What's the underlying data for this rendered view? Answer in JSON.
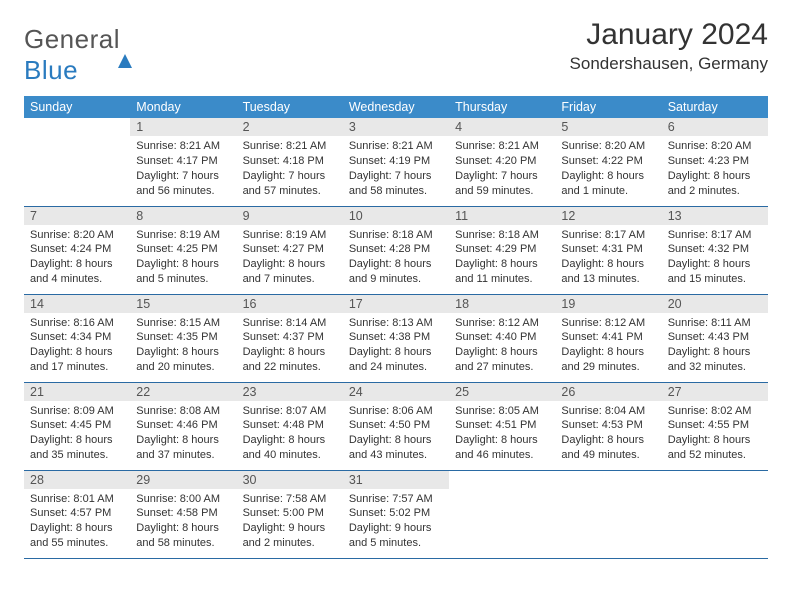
{
  "brand": {
    "left": "General",
    "right": "Blue"
  },
  "title": "January 2024",
  "location": "Sondershausen, Germany",
  "theme": {
    "header_bg": "#3b8bc9",
    "header_text": "#ffffff",
    "daynum_bg": "#e8e8e8",
    "border_color": "#2a6aa3",
    "body_text": "#333333",
    "title_fontsize": 30,
    "location_fontsize": 17,
    "cell_fontsize": 11
  },
  "weekdays": [
    "Sunday",
    "Monday",
    "Tuesday",
    "Wednesday",
    "Thursday",
    "Friday",
    "Saturday"
  ],
  "weeks": [
    [
      {
        "n": "",
        "sr": "",
        "ss": "",
        "dl": ""
      },
      {
        "n": "1",
        "sr": "Sunrise: 8:21 AM",
        "ss": "Sunset: 4:17 PM",
        "dl": "Daylight: 7 hours and 56 minutes."
      },
      {
        "n": "2",
        "sr": "Sunrise: 8:21 AM",
        "ss": "Sunset: 4:18 PM",
        "dl": "Daylight: 7 hours and 57 minutes."
      },
      {
        "n": "3",
        "sr": "Sunrise: 8:21 AM",
        "ss": "Sunset: 4:19 PM",
        "dl": "Daylight: 7 hours and 58 minutes."
      },
      {
        "n": "4",
        "sr": "Sunrise: 8:21 AM",
        "ss": "Sunset: 4:20 PM",
        "dl": "Daylight: 7 hours and 59 minutes."
      },
      {
        "n": "5",
        "sr": "Sunrise: 8:20 AM",
        "ss": "Sunset: 4:22 PM",
        "dl": "Daylight: 8 hours and 1 minute."
      },
      {
        "n": "6",
        "sr": "Sunrise: 8:20 AM",
        "ss": "Sunset: 4:23 PM",
        "dl": "Daylight: 8 hours and 2 minutes."
      }
    ],
    [
      {
        "n": "7",
        "sr": "Sunrise: 8:20 AM",
        "ss": "Sunset: 4:24 PM",
        "dl": "Daylight: 8 hours and 4 minutes."
      },
      {
        "n": "8",
        "sr": "Sunrise: 8:19 AM",
        "ss": "Sunset: 4:25 PM",
        "dl": "Daylight: 8 hours and 5 minutes."
      },
      {
        "n": "9",
        "sr": "Sunrise: 8:19 AM",
        "ss": "Sunset: 4:27 PM",
        "dl": "Daylight: 8 hours and 7 minutes."
      },
      {
        "n": "10",
        "sr": "Sunrise: 8:18 AM",
        "ss": "Sunset: 4:28 PM",
        "dl": "Daylight: 8 hours and 9 minutes."
      },
      {
        "n": "11",
        "sr": "Sunrise: 8:18 AM",
        "ss": "Sunset: 4:29 PM",
        "dl": "Daylight: 8 hours and 11 minutes."
      },
      {
        "n": "12",
        "sr": "Sunrise: 8:17 AM",
        "ss": "Sunset: 4:31 PM",
        "dl": "Daylight: 8 hours and 13 minutes."
      },
      {
        "n": "13",
        "sr": "Sunrise: 8:17 AM",
        "ss": "Sunset: 4:32 PM",
        "dl": "Daylight: 8 hours and 15 minutes."
      }
    ],
    [
      {
        "n": "14",
        "sr": "Sunrise: 8:16 AM",
        "ss": "Sunset: 4:34 PM",
        "dl": "Daylight: 8 hours and 17 minutes."
      },
      {
        "n": "15",
        "sr": "Sunrise: 8:15 AM",
        "ss": "Sunset: 4:35 PM",
        "dl": "Daylight: 8 hours and 20 minutes."
      },
      {
        "n": "16",
        "sr": "Sunrise: 8:14 AM",
        "ss": "Sunset: 4:37 PM",
        "dl": "Daylight: 8 hours and 22 minutes."
      },
      {
        "n": "17",
        "sr": "Sunrise: 8:13 AM",
        "ss": "Sunset: 4:38 PM",
        "dl": "Daylight: 8 hours and 24 minutes."
      },
      {
        "n": "18",
        "sr": "Sunrise: 8:12 AM",
        "ss": "Sunset: 4:40 PM",
        "dl": "Daylight: 8 hours and 27 minutes."
      },
      {
        "n": "19",
        "sr": "Sunrise: 8:12 AM",
        "ss": "Sunset: 4:41 PM",
        "dl": "Daylight: 8 hours and 29 minutes."
      },
      {
        "n": "20",
        "sr": "Sunrise: 8:11 AM",
        "ss": "Sunset: 4:43 PM",
        "dl": "Daylight: 8 hours and 32 minutes."
      }
    ],
    [
      {
        "n": "21",
        "sr": "Sunrise: 8:09 AM",
        "ss": "Sunset: 4:45 PM",
        "dl": "Daylight: 8 hours and 35 minutes."
      },
      {
        "n": "22",
        "sr": "Sunrise: 8:08 AM",
        "ss": "Sunset: 4:46 PM",
        "dl": "Daylight: 8 hours and 37 minutes."
      },
      {
        "n": "23",
        "sr": "Sunrise: 8:07 AM",
        "ss": "Sunset: 4:48 PM",
        "dl": "Daylight: 8 hours and 40 minutes."
      },
      {
        "n": "24",
        "sr": "Sunrise: 8:06 AM",
        "ss": "Sunset: 4:50 PM",
        "dl": "Daylight: 8 hours and 43 minutes."
      },
      {
        "n": "25",
        "sr": "Sunrise: 8:05 AM",
        "ss": "Sunset: 4:51 PM",
        "dl": "Daylight: 8 hours and 46 minutes."
      },
      {
        "n": "26",
        "sr": "Sunrise: 8:04 AM",
        "ss": "Sunset: 4:53 PM",
        "dl": "Daylight: 8 hours and 49 minutes."
      },
      {
        "n": "27",
        "sr": "Sunrise: 8:02 AM",
        "ss": "Sunset: 4:55 PM",
        "dl": "Daylight: 8 hours and 52 minutes."
      }
    ],
    [
      {
        "n": "28",
        "sr": "Sunrise: 8:01 AM",
        "ss": "Sunset: 4:57 PM",
        "dl": "Daylight: 8 hours and 55 minutes."
      },
      {
        "n": "29",
        "sr": "Sunrise: 8:00 AM",
        "ss": "Sunset: 4:58 PM",
        "dl": "Daylight: 8 hours and 58 minutes."
      },
      {
        "n": "30",
        "sr": "Sunrise: 7:58 AM",
        "ss": "Sunset: 5:00 PM",
        "dl": "Daylight: 9 hours and 2 minutes."
      },
      {
        "n": "31",
        "sr": "Sunrise: 7:57 AM",
        "ss": "Sunset: 5:02 PM",
        "dl": "Daylight: 9 hours and 5 minutes."
      },
      {
        "n": "",
        "sr": "",
        "ss": "",
        "dl": ""
      },
      {
        "n": "",
        "sr": "",
        "ss": "",
        "dl": ""
      },
      {
        "n": "",
        "sr": "",
        "ss": "",
        "dl": ""
      }
    ]
  ]
}
